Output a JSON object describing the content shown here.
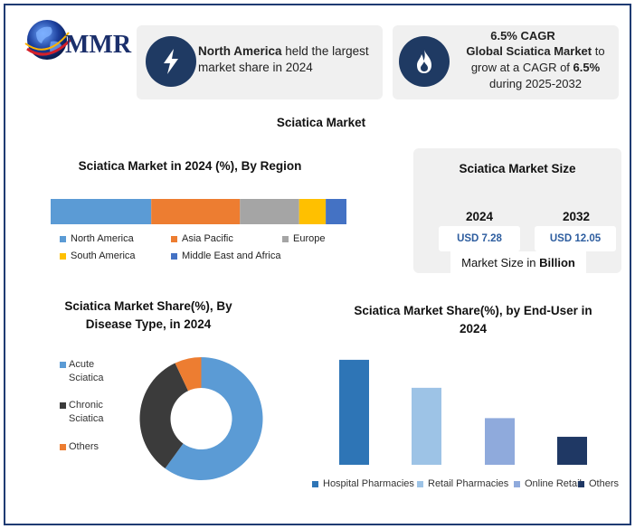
{
  "logo": {
    "text": "MMR"
  },
  "card1": {
    "bold": "North America",
    "rest": " held the largest market share in 2024",
    "icon": "lightning-bolt-icon"
  },
  "card2": {
    "head": "6.5% CAGR",
    "bold": "Global Sciatica Market",
    "mid": " to grow at a CAGR of ",
    "rate": "6.5%",
    "tail": "during 2025-2032",
    "icon": "flame-icon"
  },
  "main_title": "Sciatica Market",
  "size_panel": {
    "title": "Sciatica Market Size",
    "years": [
      "2024",
      "2032"
    ],
    "values": [
      "USD 7.28",
      "USD 12.05"
    ],
    "footer_prefix": "Market Size in ",
    "footer_bold": "Billion"
  },
  "chart_data": [
    {
      "type": "bar",
      "orientation": "horizontal-stacked",
      "title": "Sciatica Market in 2024 (%), By Region",
      "categories": [
        "North America",
        "Asia Pacific",
        "Europe",
        "South America",
        "Middle East and Africa"
      ],
      "values": [
        34,
        30,
        20,
        9,
        7
      ],
      "colors": [
        "#5b9bd5",
        "#ed7d31",
        "#a5a5a5",
        "#ffc000",
        "#4472c4"
      ],
      "legend": "bottom"
    },
    {
      "type": "pie",
      "subtype": "donut",
      "title": "Sciatica Market Share(%), By Disease Type, in 2024",
      "categories": [
        "Acute Sciatica",
        "Chronic Sciatica",
        "Others"
      ],
      "legend_lines": [
        [
          "Acute",
          "Sciatica"
        ],
        [
          "Chronic",
          "Sciatica"
        ],
        [
          "Others"
        ]
      ],
      "values": [
        60,
        33,
        7
      ],
      "colors": [
        "#5b9bd5",
        "#3b3b3b",
        "#ed7d31"
      ],
      "legend": "left"
    },
    {
      "type": "bar",
      "title": "Sciatica Market Share(%), by End-User in 2024",
      "categories": [
        "Hospital Pharmacies",
        "Retail Pharmacies",
        "Online Retail",
        "Others"
      ],
      "values": [
        45,
        33,
        20,
        12
      ],
      "colors": [
        "#2e75b6",
        "#9dc3e6",
        "#8faadc",
        "#1f3864"
      ],
      "ylim": [
        0,
        50
      ],
      "legend": "bottom"
    }
  ]
}
